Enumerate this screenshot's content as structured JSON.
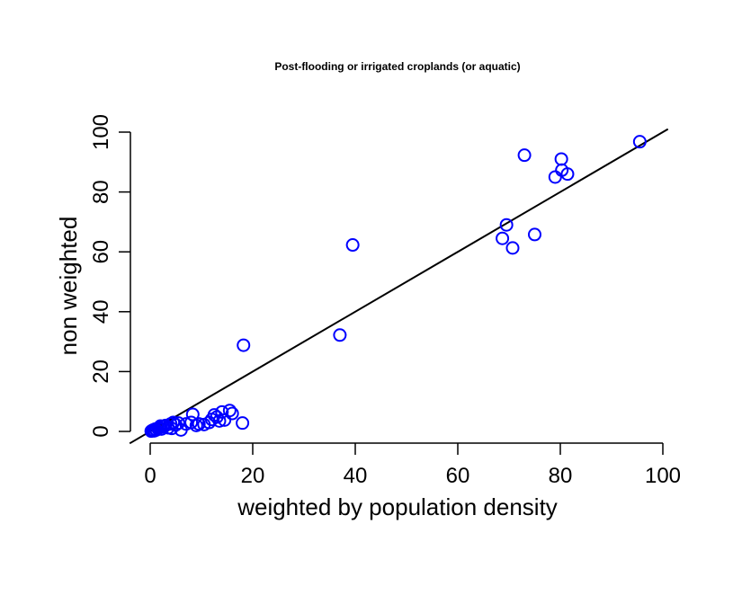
{
  "chart_data": {
    "type": "scatter",
    "title": "Post-flooding or irrigated croplands (or aquatic)",
    "xlabel": "weighted by population density",
    "ylabel": "non weighted",
    "xlim": [
      0,
      100
    ],
    "ylim": [
      0,
      100
    ],
    "x_ticks": [
      0,
      20,
      40,
      60,
      80,
      100
    ],
    "y_ticks": [
      0,
      20,
      40,
      60,
      80,
      100
    ],
    "grid": false,
    "marker": "open-circle",
    "colors": {
      "points": "#0000ff",
      "line": "#000000"
    },
    "reference_line": {
      "slope": 1,
      "intercept": 0
    },
    "series": [
      {
        "points": [
          [
            0.2,
            0.1
          ],
          [
            0.4,
            0.3
          ],
          [
            0.6,
            0.5
          ],
          [
            0.8,
            0.2
          ],
          [
            1.0,
            0.8
          ],
          [
            1.2,
            0.5
          ],
          [
            1.5,
            1.0
          ],
          [
            1.8,
            1.2
          ],
          [
            2.0,
            1.8
          ],
          [
            2.2,
            0.8
          ],
          [
            2.5,
            1.5
          ],
          [
            3.0,
            2.0
          ],
          [
            3.5,
            1.2
          ],
          [
            4.0,
            2.5
          ],
          [
            4.2,
            1.0
          ],
          [
            4.5,
            3.0
          ],
          [
            5.0,
            2.2
          ],
          [
            5.5,
            2.8
          ],
          [
            6.0,
            0.5
          ],
          [
            7.0,
            2.5
          ],
          [
            8.0,
            3.0
          ],
          [
            8.3,
            5.7
          ],
          [
            9.0,
            2.0
          ],
          [
            9.5,
            2.5
          ],
          [
            10.5,
            2.3
          ],
          [
            11.5,
            3.0
          ],
          [
            12.0,
            4.0
          ],
          [
            12.5,
            5.5
          ],
          [
            13.0,
            4.8
          ],
          [
            13.5,
            3.5
          ],
          [
            14.0,
            6.5
          ],
          [
            14.5,
            3.8
          ],
          [
            15.5,
            7.0
          ],
          [
            16.0,
            6.0
          ],
          [
            18.0,
            2.8
          ],
          [
            18.2,
            28.8
          ],
          [
            37.0,
            32.2
          ],
          [
            39.5,
            62.3
          ],
          [
            68.7,
            64.5
          ],
          [
            69.5,
            69.0
          ],
          [
            70.7,
            61.3
          ],
          [
            73.0,
            92.3
          ],
          [
            75.0,
            65.8
          ],
          [
            79.0,
            85.0
          ],
          [
            80.2,
            91.0
          ],
          [
            80.3,
            87.3
          ],
          [
            81.4,
            86.0
          ],
          [
            95.5,
            96.8
          ]
        ]
      }
    ]
  }
}
